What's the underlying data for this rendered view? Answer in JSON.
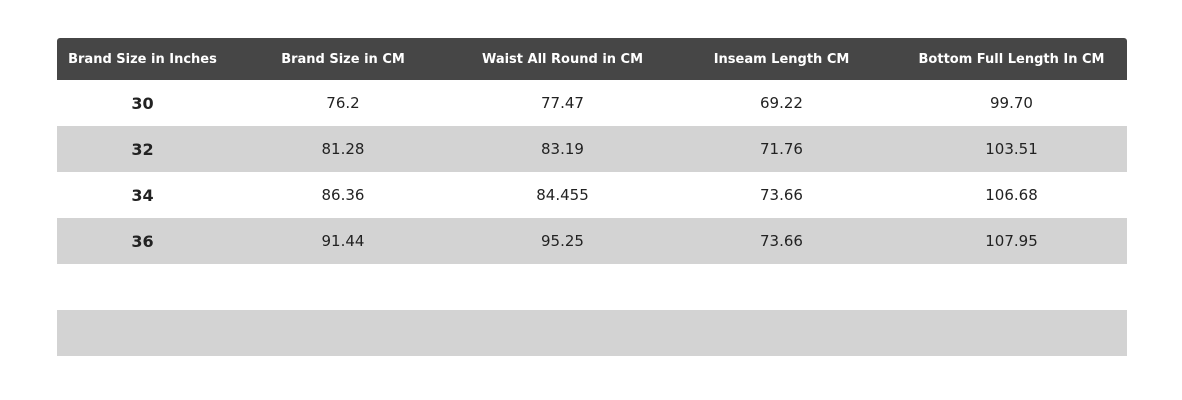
{
  "table": {
    "header": [
      "Brand Size in Inches",
      "Brand Size in CM",
      "Waist All Round in CM",
      "Inseam Length CM",
      "Bottom Full Length In CM"
    ],
    "rows": [
      [
        "30",
        "76.2",
        "77.47",
        "69.22",
        "99.70"
      ],
      [
        "32",
        "81.28",
        "83.19",
        "71.76",
        "103.51"
      ],
      [
        "34",
        "86.36",
        "84.455",
        "73.66",
        "106.68"
      ],
      [
        "36",
        "91.44",
        "95.25",
        "73.66",
        "107.95"
      ]
    ]
  }
}
